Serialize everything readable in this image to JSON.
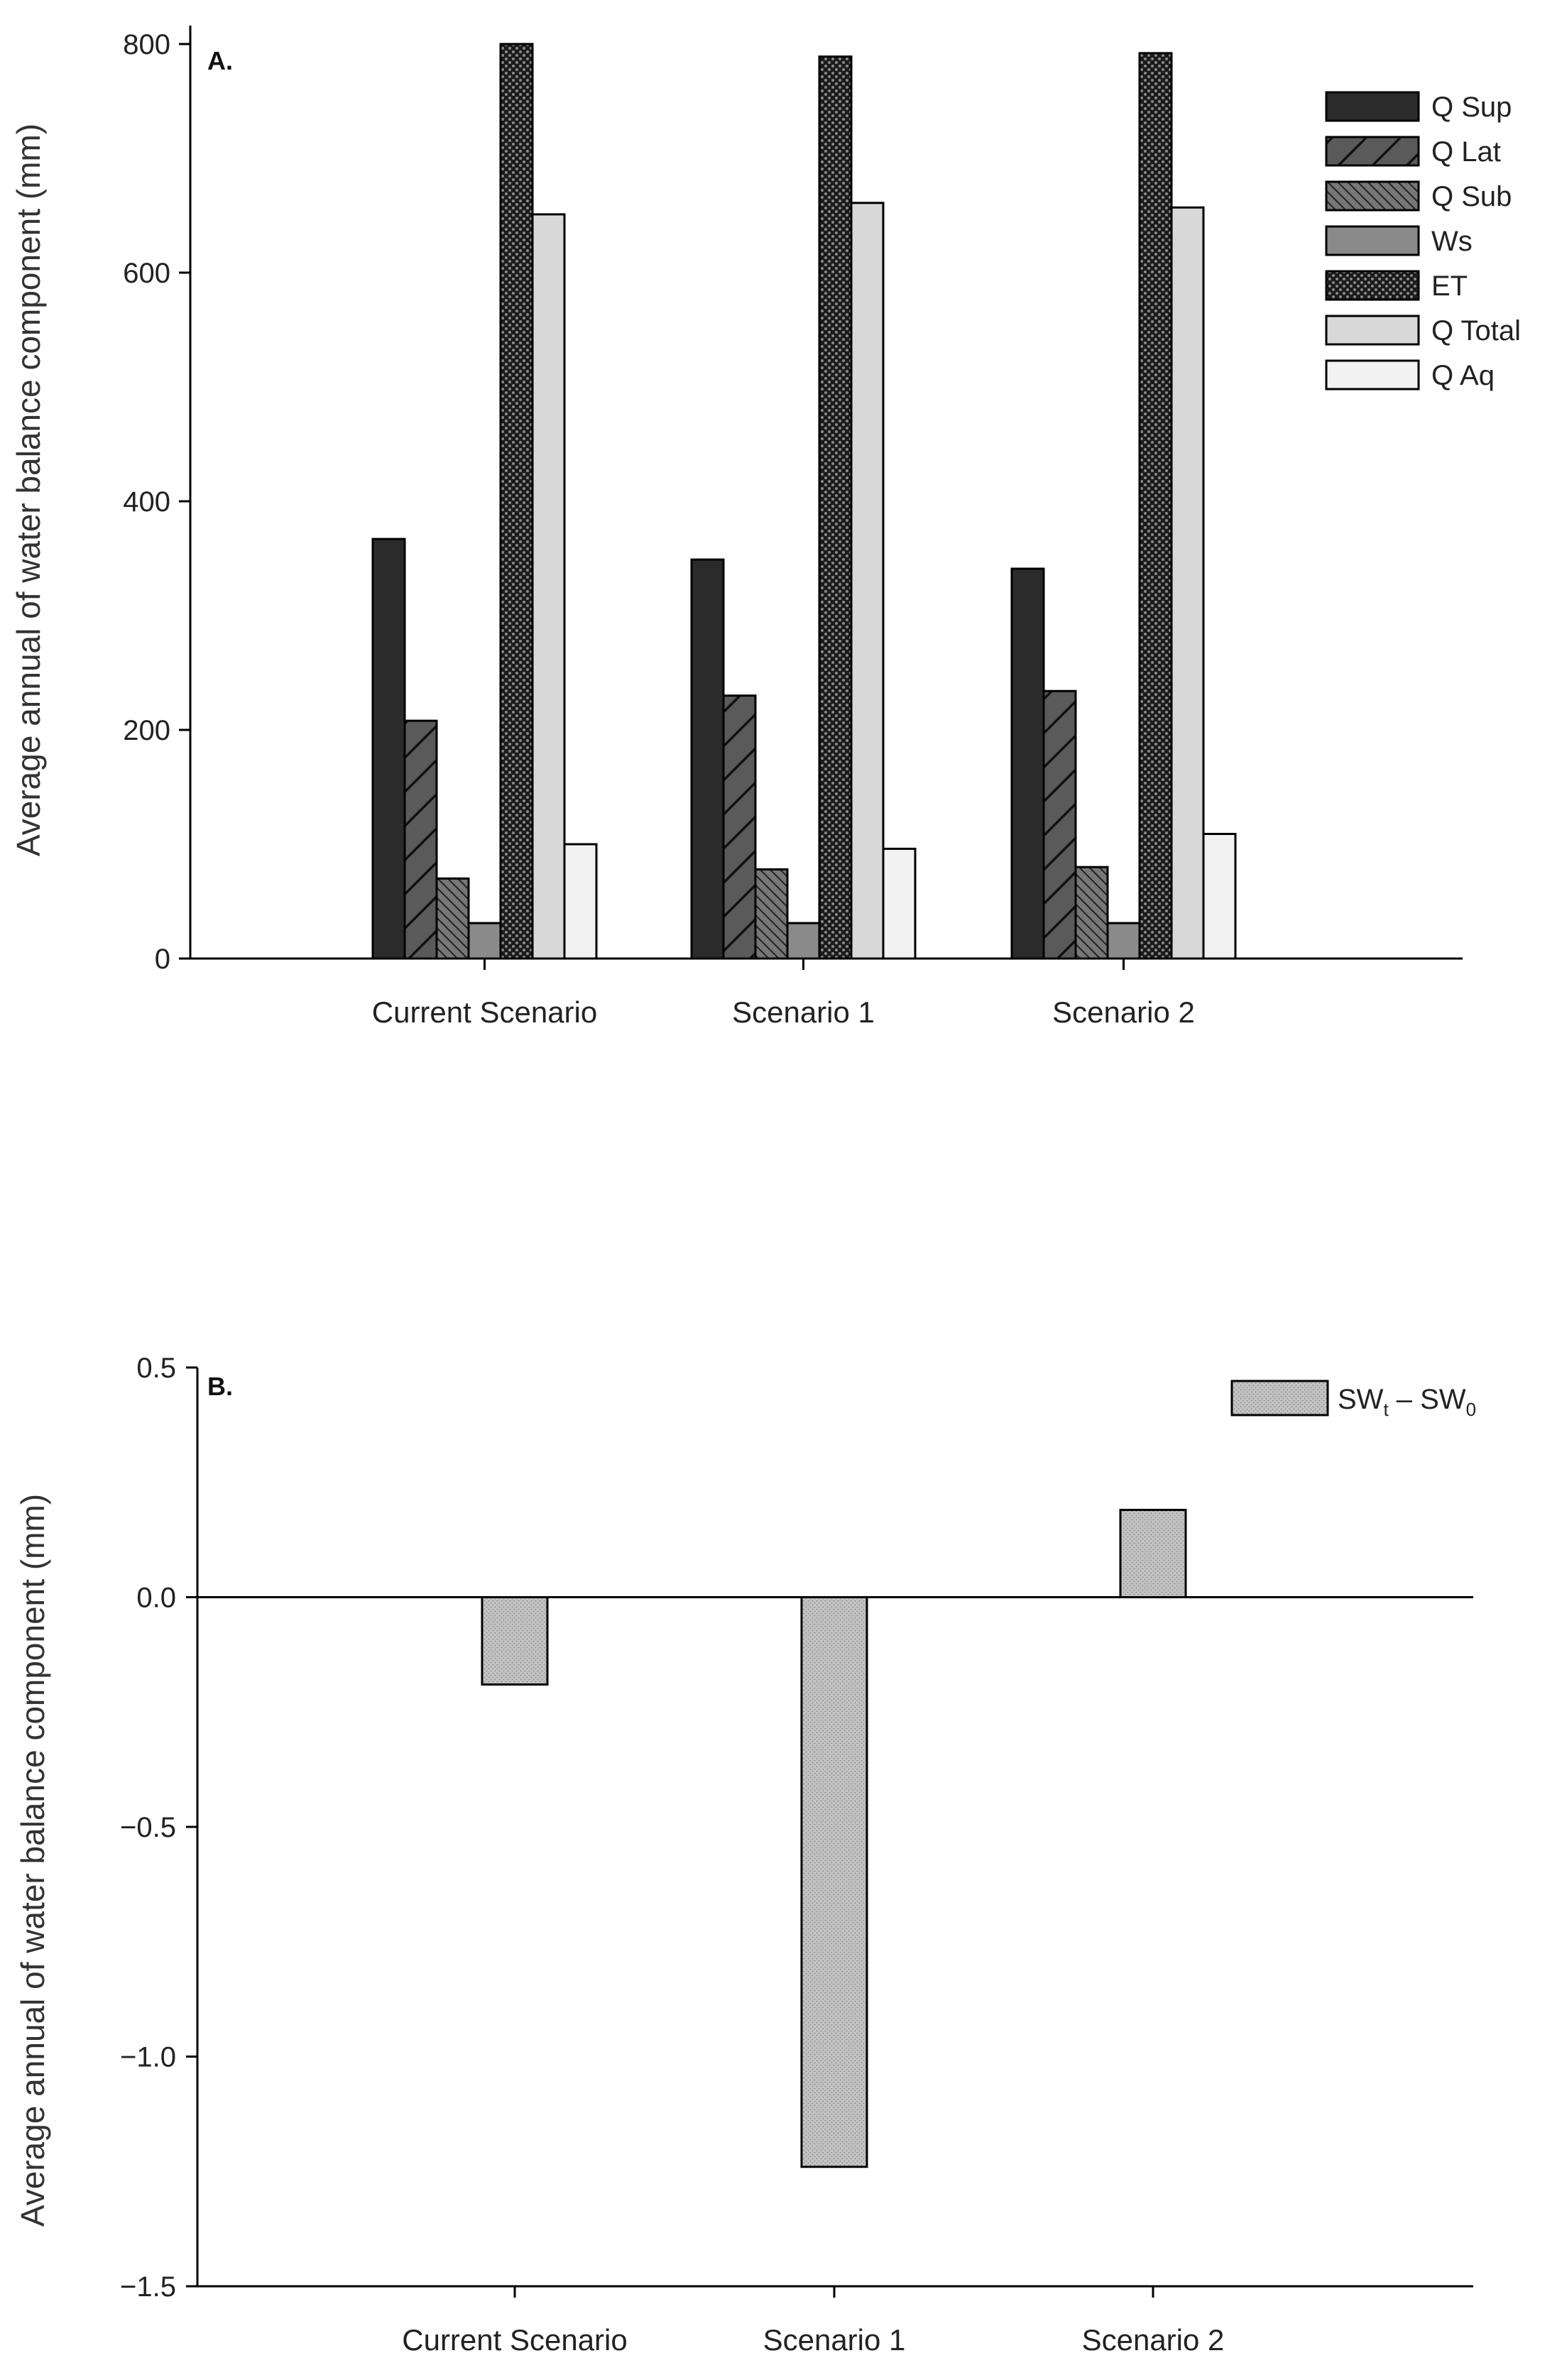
{
  "chart_data": [
    {
      "type": "bar",
      "panel_label": "A.",
      "ylabel": "Average annual of water balance component (mm)",
      "xlabel": "",
      "ylim": [
        0,
        850
      ],
      "yticks": [
        "0",
        "200",
        "400",
        "600",
        "800"
      ],
      "ytick_values": [
        0,
        200,
        400,
        600,
        800
      ],
      "categories": [
        "Current Scenario",
        "Scenario 1",
        "Scenario 2"
      ],
      "legend_position": "top-right",
      "series": [
        {
          "name": "Q Sup",
          "values": [
            367,
            349,
            341
          ],
          "color": "#2b2b2b",
          "pattern": "solid-dark"
        },
        {
          "name": "Q Lat",
          "values": [
            208,
            230,
            234
          ],
          "color": "#555555",
          "pattern": "diag-wide"
        },
        {
          "name": "Q Sub",
          "values": [
            70,
            78,
            80
          ],
          "color": "#6a6a6a",
          "pattern": "diag-dense"
        },
        {
          "name": "Ws",
          "values": [
            31,
            31,
            31
          ],
          "color": "#8a8a8a",
          "pattern": "solid-mid"
        },
        {
          "name": "ET",
          "values": [
            800,
            789,
            792
          ],
          "color": "#3a3a3a",
          "pattern": "dots"
        },
        {
          "name": "Q Total",
          "values": [
            651,
            661,
            657
          ],
          "color": "#d8d8d8",
          "pattern": "solid-light"
        },
        {
          "name": "Q Aq",
          "values": [
            100,
            96,
            109
          ],
          "color": "#f2f2f2",
          "pattern": "solid-white"
        }
      ]
    },
    {
      "type": "bar",
      "panel_label": "B.",
      "ylabel": "Average annual of water balance component (mm)",
      "xlabel": "",
      "ylim": [
        -1.5,
        0.5
      ],
      "yticks": [
        "0.5",
        "0.0",
        "−0.5",
        "−1.0",
        "−1.5"
      ],
      "ytick_values": [
        0.5,
        0.0,
        -0.5,
        -1.0,
        -1.5
      ],
      "categories": [
        "Current Scenario",
        "Scenario 1",
        "Scenario 2"
      ],
      "legend_position": "top-right",
      "series": [
        {
          "name": "SWt – SW0",
          "legend_main": "SW",
          "legend_sub1": "t",
          "legend_mid": " – SW",
          "legend_sub2": "0",
          "values": [
            -0.19,
            -1.24,
            0.19
          ],
          "color": "#bdbdbd",
          "pattern": "fine-dots"
        }
      ]
    }
  ]
}
